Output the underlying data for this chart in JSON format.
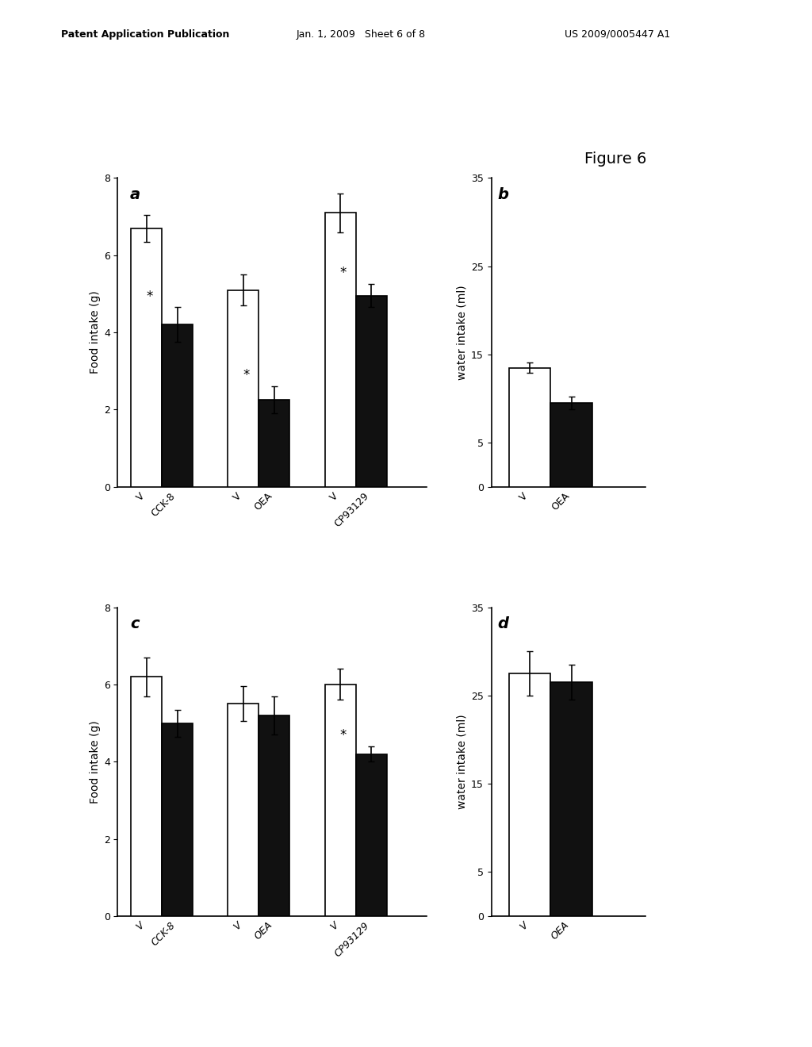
{
  "figure_label": "Figure 6",
  "panel_a": {
    "label": "a",
    "ylabel": "Food intake (g)",
    "ylim": [
      0,
      8
    ],
    "yticks": [
      0,
      2,
      4,
      6,
      8
    ],
    "groups": [
      "CCK-8",
      "OEA",
      "CP93129"
    ],
    "white_vals": [
      6.7,
      5.1,
      7.1
    ],
    "black_vals": [
      4.2,
      2.25,
      4.95
    ],
    "white_errs": [
      0.35,
      0.4,
      0.5
    ],
    "black_errs": [
      0.45,
      0.35,
      0.3
    ],
    "significant_black": [
      true,
      true,
      true
    ]
  },
  "panel_b": {
    "label": "b",
    "ylabel": "water intake (ml)",
    "ylim": [
      0,
      35
    ],
    "yticks": [
      0,
      5,
      15,
      25,
      35
    ],
    "groups": [
      "OEA"
    ],
    "white_vals": [
      13.5
    ],
    "black_vals": [
      9.5
    ],
    "white_errs": [
      0.6
    ],
    "black_errs": [
      0.7
    ],
    "significant_black": [
      false
    ]
  },
  "panel_c": {
    "label": "c",
    "ylabel": "Food intake (g)",
    "ylim": [
      0,
      8
    ],
    "yticks": [
      0,
      2,
      4,
      6,
      8
    ],
    "groups": [
      "CCK-8",
      "OEA",
      "CP93129"
    ],
    "white_vals": [
      6.2,
      5.5,
      6.0
    ],
    "black_vals": [
      5.0,
      5.2,
      4.2
    ],
    "white_errs": [
      0.5,
      0.45,
      0.4
    ],
    "black_errs": [
      0.35,
      0.5,
      0.2
    ],
    "significant_black": [
      false,
      false,
      true
    ]
  },
  "panel_d": {
    "label": "d",
    "ylabel": "water intake (ml)",
    "ylim": [
      0,
      35
    ],
    "yticks": [
      0,
      5,
      15,
      25,
      35
    ],
    "groups": [
      "OEA"
    ],
    "white_vals": [
      27.5
    ],
    "black_vals": [
      26.5
    ],
    "white_errs": [
      2.5
    ],
    "black_errs": [
      2.0
    ],
    "significant_black": [
      false
    ]
  },
  "bar_width": 0.35,
  "white_color": "#ffffff",
  "black_color": "#111111",
  "edge_color": "#000000",
  "header_left": "Patent Application Publication",
  "header_mid": "Jan. 1, 2009   Sheet 6 of 8",
  "header_right": "US 2009/0005447 A1"
}
